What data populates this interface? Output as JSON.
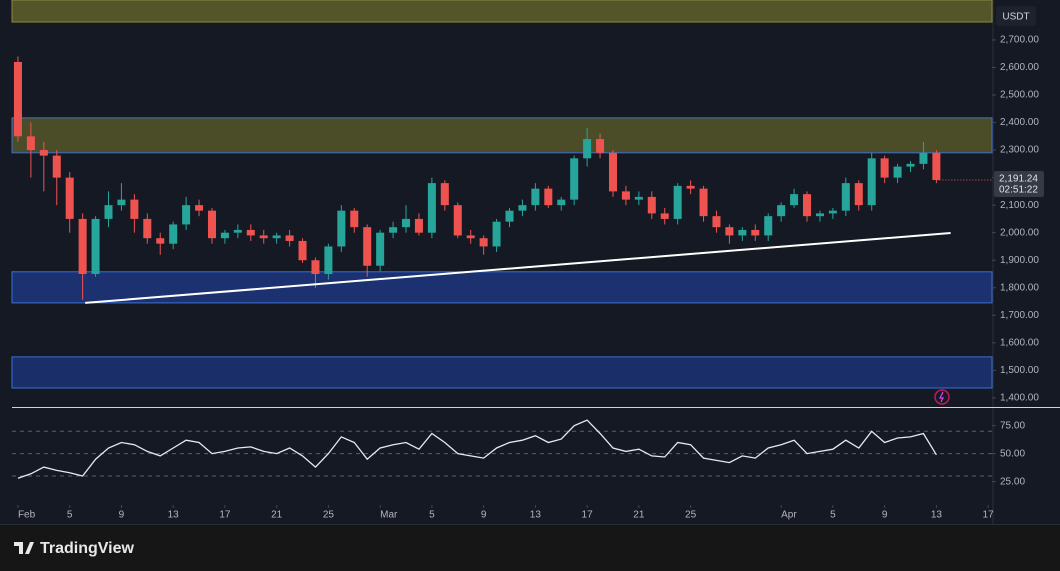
{
  "chart_data": [
    {
      "type": "candlestick",
      "currency": "USDT",
      "x": [
        0,
        1,
        2,
        3,
        4,
        5,
        6,
        7,
        8,
        9,
        10,
        11,
        12,
        13,
        14,
        15,
        16,
        17,
        18,
        19,
        20,
        21,
        22,
        23,
        24,
        25,
        26,
        27,
        28,
        29,
        30,
        31,
        32,
        33,
        34,
        35,
        36,
        37,
        38,
        39,
        40,
        41,
        42,
        43,
        44,
        45,
        46,
        47,
        48,
        49,
        50,
        51,
        52,
        53,
        54,
        55,
        56,
        57,
        58,
        59,
        60,
        61,
        62,
        63,
        64,
        65,
        66,
        67,
        68,
        69,
        70,
        71
      ],
      "open": [
        2620,
        2350,
        2300,
        2280,
        2200,
        2050,
        1850,
        2050,
        2100,
        2120,
        2050,
        1980,
        1960,
        2030,
        2100,
        2080,
        1980,
        2000,
        2010,
        1990,
        1980,
        1990,
        1970,
        1900,
        1850,
        1950,
        2080,
        2020,
        1880,
        2000,
        2020,
        2050,
        2000,
        2180,
        2100,
        1990,
        1980,
        1950,
        2040,
        2080,
        2100,
        2160,
        2100,
        2120,
        2270,
        2340,
        2290,
        2150,
        2120,
        2130,
        2070,
        2050,
        2170,
        2160,
        2060,
        2020,
        1990,
        2010,
        1990,
        2060,
        2100,
        2140,
        2060,
        2070,
        2080,
        2180,
        2100,
        2270,
        2200,
        2240,
        2250,
        2290
      ],
      "high": [
        2640,
        2400,
        2330,
        2300,
        2220,
        2070,
        2060,
        2150,
        2180,
        2140,
        2070,
        2000,
        2040,
        2130,
        2120,
        2090,
        2010,
        2030,
        2030,
        2010,
        2000,
        2010,
        1980,
        1910,
        1960,
        2100,
        2090,
        2030,
        2010,
        2040,
        2100,
        2070,
        2200,
        2190,
        2110,
        2010,
        1990,
        2050,
        2090,
        2120,
        2180,
        2170,
        2130,
        2280,
        2380,
        2360,
        2300,
        2170,
        2150,
        2150,
        2090,
        2180,
        2190,
        2170,
        2080,
        2030,
        2020,
        2030,
        2070,
        2110,
        2160,
        2150,
        2080,
        2090,
        2200,
        2190,
        2290,
        2280,
        2250,
        2260,
        2330,
        2300
      ],
      "low": [
        2330,
        2200,
        2150,
        2100,
        2000,
        1756,
        1840,
        2020,
        2080,
        2000,
        1960,
        1920,
        1940,
        2010,
        2060,
        1960,
        1960,
        1980,
        1970,
        1960,
        1960,
        1950,
        1890,
        1800,
        1830,
        1930,
        2000,
        1840,
        1860,
        1980,
        2000,
        1990,
        1980,
        2080,
        1980,
        1960,
        1920,
        1930,
        2020,
        2060,
        2080,
        2090,
        2080,
        2100,
        2240,
        2270,
        2130,
        2100,
        2100,
        2050,
        2030,
        2030,
        2140,
        2040,
        2000,
        1960,
        1970,
        1970,
        1970,
        2040,
        2090,
        2040,
        2040,
        2050,
        2060,
        2080,
        2080,
        2180,
        2180,
        2220,
        2230,
        2180
      ],
      "close": [
        2350,
        2300,
        2280,
        2200,
        2050,
        1850,
        2050,
        2100,
        2120,
        2050,
        1980,
        1960,
        2030,
        2100,
        2080,
        1980,
        2000,
        2010,
        1990,
        1980,
        1990,
        1970,
        1900,
        1850,
        1950,
        2080,
        2020,
        1880,
        2000,
        2020,
        2050,
        2000,
        2180,
        2100,
        1990,
        1980,
        1950,
        2040,
        2080,
        2100,
        2160,
        2100,
        2120,
        2270,
        2340,
        2290,
        2150,
        2120,
        2130,
        2070,
        2050,
        2170,
        2160,
        2060,
        2020,
        1990,
        2010,
        1990,
        2060,
        2100,
        2140,
        2060,
        2070,
        2080,
        2180,
        2100,
        2270,
        2200,
        2240,
        2250,
        2290,
        2191.24
      ],
      "up_color": "#26a69a",
      "down_color": "#ef5350",
      "zones": [
        {
          "from": 2765,
          "to": 2845,
          "color": "#6b6a2c"
        },
        {
          "from": 2290,
          "to": 2417,
          "color": "#5e5d2a"
        },
        {
          "from": 1745,
          "to": 1858,
          "color": "#1f3a8a"
        },
        {
          "from": 1436,
          "to": 1549,
          "color": "#1c3580"
        }
      ],
      "trendline": {
        "x": [
          5.2,
          72.1
        ],
        "y": [
          1745,
          1999
        ],
        "color": "#ffffff"
      },
      "last_price": {
        "value": 2191.24,
        "label": "2,191.24",
        "countdown": "02:51:22"
      },
      "xlim": [
        -0.46,
        75.3
      ],
      "xticks": [
        {
          "value": 0,
          "label": "Feb"
        },
        {
          "value": 4,
          "label": "5"
        },
        {
          "value": 8,
          "label": "9"
        },
        {
          "value": 12,
          "label": "13"
        },
        {
          "value": 16,
          "label": "17"
        },
        {
          "value": 20,
          "label": "21"
        },
        {
          "value": 24,
          "label": "25"
        },
        {
          "value": 28,
          "label": "Mar"
        },
        {
          "value": 32,
          "label": "5"
        },
        {
          "value": 36,
          "label": "9"
        },
        {
          "value": 40,
          "label": "13"
        },
        {
          "value": 44,
          "label": "17"
        },
        {
          "value": 48,
          "label": "21"
        },
        {
          "value": 52,
          "label": "25"
        },
        {
          "value": 59,
          "label": "Apr"
        },
        {
          "value": 63,
          "label": "5"
        },
        {
          "value": 67,
          "label": "9"
        },
        {
          "value": 71,
          "label": "13"
        },
        {
          "value": 75,
          "label": "17"
        }
      ],
      "ylim": [
        1367,
        2845
      ],
      "yticks": [
        {
          "value": 1400,
          "label": "1,400.00"
        },
        {
          "value": 1500,
          "label": "1,500.00"
        },
        {
          "value": 1600,
          "label": "1,600.00"
        },
        {
          "value": 1700,
          "label": "1,700.00"
        },
        {
          "value": 1800,
          "label": "1,800.00"
        },
        {
          "value": 1900,
          "label": "1,900.00"
        },
        {
          "value": 2000,
          "label": "2,000.00"
        },
        {
          "value": 2100,
          "label": "2,100.00"
        },
        {
          "value": 2200,
          "label": "2,200.00"
        },
        {
          "value": 2300,
          "label": "2,300.00"
        },
        {
          "value": 2400,
          "label": "2,400.00"
        },
        {
          "value": 2500,
          "label": "2,500.00"
        },
        {
          "value": 2600,
          "label": "2,600.00"
        },
        {
          "value": 2700,
          "label": "2,700.00"
        }
      ]
    },
    {
      "type": "line",
      "x": [
        0,
        1,
        2,
        3,
        4,
        5,
        6,
        7,
        8,
        9,
        10,
        11,
        12,
        13,
        14,
        15,
        16,
        17,
        18,
        19,
        20,
        21,
        22,
        23,
        24,
        25,
        26,
        27,
        28,
        29,
        30,
        31,
        32,
        33,
        34,
        35,
        36,
        37,
        38,
        39,
        40,
        41,
        42,
        43,
        44,
        45,
        46,
        47,
        48,
        49,
        50,
        51,
        52,
        53,
        54,
        55,
        56,
        57,
        58,
        59,
        60,
        61,
        62,
        63,
        64,
        65,
        66,
        67,
        68,
        69,
        70,
        71
      ],
      "values": [
        28,
        32,
        38,
        35,
        33,
        30,
        45,
        55,
        60,
        58,
        52,
        48,
        55,
        62,
        60,
        50,
        52,
        55,
        56,
        52,
        50,
        55,
        48,
        38,
        50,
        65,
        60,
        45,
        55,
        58,
        60,
        54,
        68,
        60,
        50,
        48,
        46,
        55,
        60,
        62,
        66,
        60,
        63,
        75,
        80,
        68,
        55,
        52,
        54,
        48,
        47,
        60,
        58,
        46,
        44,
        42,
        48,
        46,
        55,
        58,
        62,
        50,
        52,
        54,
        62,
        55,
        70,
        60,
        64,
        65,
        68,
        49
      ],
      "color": "#e6e9ef",
      "levels": [
        70,
        50,
        30
      ],
      "ylim": [
        5,
        89
      ],
      "yticks": [
        {
          "value": 25,
          "label": "25.00"
        },
        {
          "value": 50,
          "label": "50.00"
        },
        {
          "value": 75,
          "label": "75.00"
        }
      ]
    }
  ],
  "footer": {
    "brand": "TradingView"
  }
}
